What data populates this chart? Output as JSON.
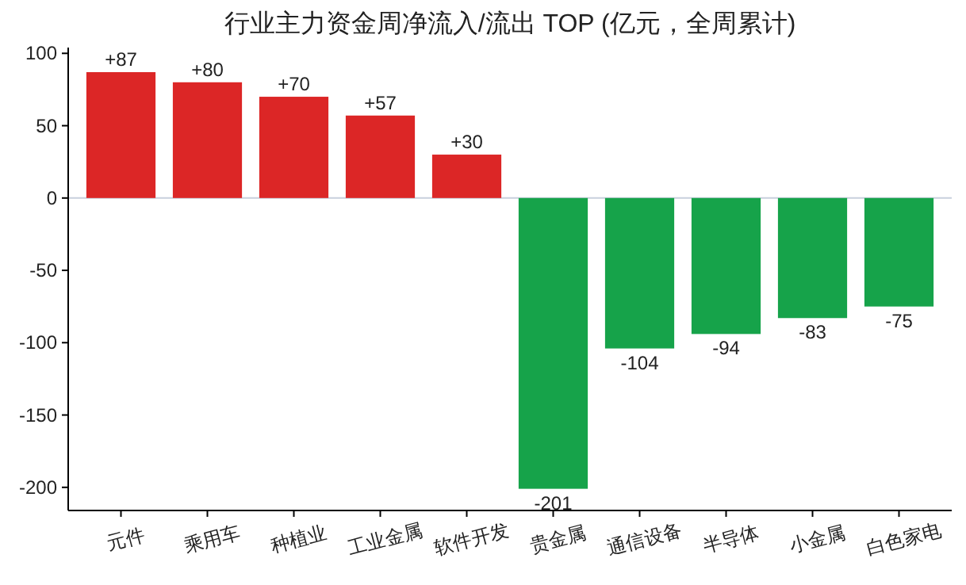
{
  "chart_data": {
    "type": "bar",
    "title": "行业主力资金周净流入/流出 TOP (亿元，全周累计)",
    "categories": [
      "元件",
      "乘用车",
      "种植业",
      "工业金属",
      "软件开发",
      "贵金属",
      "通信设备",
      "半导体",
      "小金属",
      "白色家电"
    ],
    "values": [
      87,
      80,
      70,
      57,
      30,
      -201,
      -104,
      -94,
      -83,
      -75
    ],
    "colors": [
      "#dc2626",
      "#dc2626",
      "#dc2626",
      "#dc2626",
      "#dc2626",
      "#16a34a",
      "#16a34a",
      "#16a34a",
      "#16a34a",
      "#16a34a"
    ],
    "value_labels": [
      "+87",
      "+80",
      "+70",
      "+57",
      "+30",
      "-201",
      "-104",
      "-94",
      "-83",
      "-75"
    ],
    "ylim": [
      -216,
      104
    ],
    "yticks": [
      -200,
      -150,
      -100,
      -50,
      0,
      50,
      100
    ],
    "ref_lines": [
      {
        "axis": "y",
        "value": 0,
        "color": "#c8d0dc"
      }
    ],
    "grid": false
  }
}
